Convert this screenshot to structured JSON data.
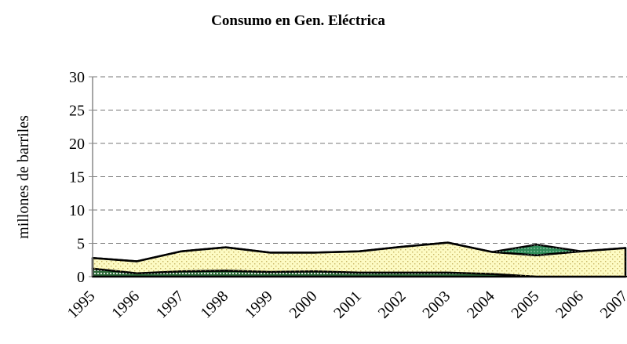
{
  "chart_data": {
    "type": "stacked_area",
    "title": "Consumo en Gen. Eléctrica",
    "y_label": "millones de barriles",
    "categories": [
      "1995",
      "1996",
      "1997",
      "1998",
      "1999",
      "2000",
      "2001",
      "2002",
      "2003",
      "2004",
      "2005",
      "2006",
      "2007"
    ],
    "series": [
      {
        "color": "#2e6b3a",
        "values": [
          1.2,
          0.5,
          0.8,
          0.9,
          0.7,
          0.8,
          0.6,
          0.6,
          0.6,
          0.4,
          0,
          0,
          0
        ]
      },
      {
        "color": "#fdfbc4",
        "values": [
          1.6,
          1.8,
          3.0,
          3.5,
          2.9,
          2.8,
          3.2,
          3.9,
          4.5,
          3.3,
          3.2,
          3.8,
          4.3
        ]
      },
      {
        "color": "#2e8b57",
        "values": [
          0,
          0,
          0,
          0,
          0,
          0,
          0,
          0,
          0,
          0,
          1.6,
          0,
          0
        ]
      }
    ],
    "ylim": [
      0,
      30
    ],
    "yticks": [
      0,
      5,
      10,
      15,
      20,
      25,
      30
    ],
    "grid": true
  }
}
